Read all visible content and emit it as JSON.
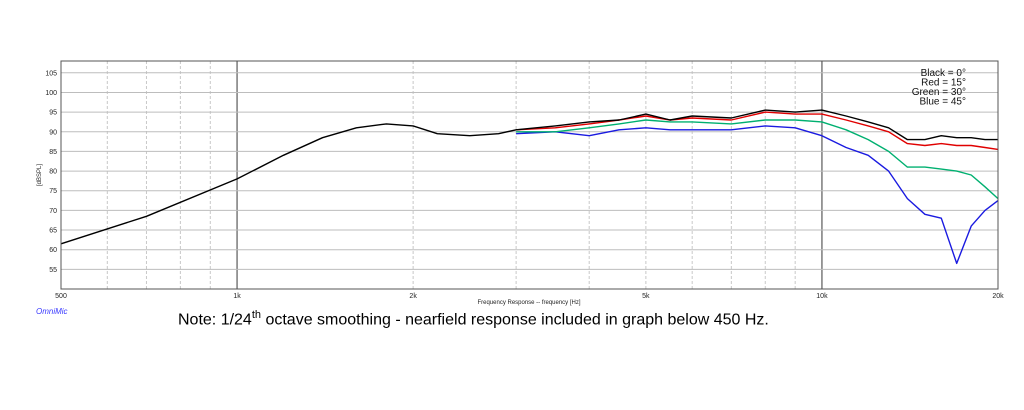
{
  "chart_data": {
    "type": "line",
    "xlabel": "Frequency Response -- frequency [Hz]",
    "ylabel": "[dBSPL]",
    "x_scale": "log",
    "xlim": [
      500,
      20000
    ],
    "ylim": [
      50,
      108
    ],
    "grid": true,
    "x_tick_labels": [
      {
        "value": 500,
        "label": "500"
      },
      {
        "value": 1000,
        "label": "1k"
      },
      {
        "value": 2000,
        "label": "2k"
      },
      {
        "value": 5000,
        "label": "5k"
      },
      {
        "value": 10000,
        "label": "10k"
      },
      {
        "value": 20000,
        "label": "20k"
      }
    ],
    "y_ticks": [
      55,
      60,
      65,
      70,
      75,
      80,
      85,
      90,
      95,
      100,
      105
    ],
    "legend": {
      "placement": "top-right",
      "entries": [
        "Black = 0°",
        "Red = 15°",
        "Green = 30°",
        "Blue = 45°"
      ]
    },
    "series": [
      {
        "color": "#000000",
        "points": [
          [
            500,
            61.5
          ],
          [
            700,
            68.5
          ],
          [
            1000,
            78
          ],
          [
            1200,
            84
          ],
          [
            1400,
            88.5
          ],
          [
            1600,
            91
          ],
          [
            1800,
            92
          ],
          [
            2000,
            91.5
          ],
          [
            2200,
            89.5
          ],
          [
            2500,
            89
          ],
          [
            2800,
            89.5
          ],
          [
            3000,
            90.5
          ],
          [
            3500,
            91.5
          ],
          [
            4000,
            92.5
          ],
          [
            4500,
            93
          ],
          [
            5000,
            94.5
          ],
          [
            5500,
            93
          ],
          [
            6000,
            94
          ],
          [
            7000,
            93.5
          ],
          [
            8000,
            95.5
          ],
          [
            9000,
            95
          ],
          [
            10000,
            95.5
          ],
          [
            11000,
            94
          ],
          [
            12000,
            92.5
          ],
          [
            13000,
            91
          ],
          [
            14000,
            88
          ],
          [
            15000,
            88
          ],
          [
            16000,
            89
          ],
          [
            17000,
            88.5
          ],
          [
            18000,
            88.5
          ],
          [
            19000,
            88
          ],
          [
            20000,
            88
          ]
        ]
      },
      {
        "color": "#e00000",
        "points": [
          [
            3000,
            90.5
          ],
          [
            3500,
            91
          ],
          [
            4000,
            92
          ],
          [
            4500,
            93
          ],
          [
            5000,
            94
          ],
          [
            5500,
            93
          ],
          [
            6000,
            93.5
          ],
          [
            7000,
            93
          ],
          [
            8000,
            95
          ],
          [
            9000,
            94.5
          ],
          [
            10000,
            94.5
          ],
          [
            11000,
            93
          ],
          [
            12000,
            91.5
          ],
          [
            13000,
            90
          ],
          [
            14000,
            87
          ],
          [
            15000,
            86.5
          ],
          [
            16000,
            87
          ],
          [
            17000,
            86.5
          ],
          [
            18000,
            86.5
          ],
          [
            19000,
            86
          ],
          [
            20000,
            85.5
          ]
        ]
      },
      {
        "color": "#00b070",
        "points": [
          [
            3000,
            90
          ],
          [
            3500,
            90
          ],
          [
            4000,
            91
          ],
          [
            4500,
            92
          ],
          [
            5000,
            93
          ],
          [
            5500,
            92.5
          ],
          [
            6000,
            92.5
          ],
          [
            7000,
            92
          ],
          [
            8000,
            93
          ],
          [
            9000,
            93
          ],
          [
            10000,
            92.5
          ],
          [
            11000,
            90.5
          ],
          [
            12000,
            88
          ],
          [
            13000,
            85
          ],
          [
            14000,
            81
          ],
          [
            15000,
            81
          ],
          [
            16000,
            80.5
          ],
          [
            17000,
            80
          ],
          [
            18000,
            79
          ],
          [
            19000,
            76
          ],
          [
            20000,
            73
          ]
        ]
      },
      {
        "color": "#1a1ae0",
        "points": [
          [
            3000,
            89.5
          ],
          [
            3500,
            90
          ],
          [
            4000,
            89
          ],
          [
            4500,
            90.5
          ],
          [
            5000,
            91
          ],
          [
            5500,
            90.5
          ],
          [
            6000,
            90.5
          ],
          [
            7000,
            90.5
          ],
          [
            8000,
            91.5
          ],
          [
            9000,
            91
          ],
          [
            10000,
            89
          ],
          [
            11000,
            86
          ],
          [
            12000,
            84
          ],
          [
            13000,
            80
          ],
          [
            14000,
            73
          ],
          [
            15000,
            69
          ],
          [
            16000,
            68
          ],
          [
            17000,
            56.5
          ],
          [
            18000,
            66
          ],
          [
            19000,
            70
          ],
          [
            20000,
            72.5
          ]
        ]
      }
    ]
  },
  "brand": "OmniMic",
  "note": {
    "prefix": "Note:  1/24",
    "sup": "th",
    "suffix": " octave smoothing - nearfield response included in graph below 450 Hz."
  }
}
